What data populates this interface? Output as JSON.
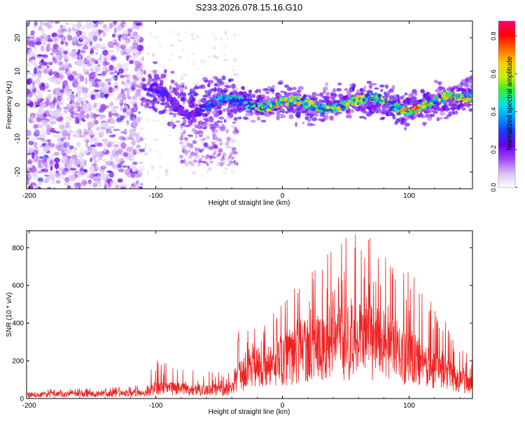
{
  "title": "S233.2026.078.15.16.G10",
  "colors": {
    "snr_line": "#ee2222",
    "colormap": [
      "#ffffff",
      "#d9c2f5",
      "#a24df0",
      "#6a00ee",
      "#2233ff",
      "#0099ff",
      "#00e5e5",
      "#33ee33",
      "#ccee00",
      "#ffcc00",
      "#ff6600",
      "#ff0000",
      "#ff0077"
    ]
  },
  "chart_data": [
    {
      "type": "heatmap",
      "name": "spectrogram",
      "xlabel": "Height of straight line (km)",
      "ylabel": "Frequency (Hz)",
      "xlim": [
        -202,
        150
      ],
      "ylim": [
        -25,
        25
      ],
      "x_ticks": [
        -200,
        -100,
        0,
        100
      ],
      "x_tick_labels": [
        "-200",
        "-100",
        "0",
        "100"
      ],
      "y_ticks": [
        20,
        10,
        0,
        -10,
        -20
      ],
      "y_tick_labels": [
        "20",
        "10",
        "0",
        "-10",
        "-20"
      ],
      "colorbar": {
        "label": "Normalized spectral amplitude",
        "range": [
          0,
          0.88
        ],
        "ticks": [
          0.0,
          0.2,
          0.4,
          0.6,
          0.8
        ],
        "tick_labels": [
          "0.0",
          "0.2",
          "0.4",
          "0.6",
          "0.8"
        ]
      },
      "description_ridge": [
        {
          "x": -100,
          "freq": 4,
          "amp": 0.3
        },
        {
          "x": -75,
          "freq": -2,
          "amp": 0.25
        },
        {
          "x": -50,
          "freq": 1,
          "amp": 0.45
        },
        {
          "x": -25,
          "freq": 0,
          "amp": 0.55
        },
        {
          "x": 0,
          "freq": 1,
          "amp": 0.7
        },
        {
          "x": 25,
          "freq": -1,
          "amp": 0.6
        },
        {
          "x": 50,
          "freq": 1,
          "amp": 0.65
        },
        {
          "x": 75,
          "freq": 1,
          "amp": 0.6
        },
        {
          "x": 100,
          "freq": -1,
          "amp": 0.75
        },
        {
          "x": 125,
          "freq": 1,
          "amp": 0.7
        },
        {
          "x": 150,
          "freq": 3,
          "amp": 0.7
        }
      ]
    },
    {
      "type": "line",
      "name": "snr",
      "xlabel": "Height of straight line (km)",
      "ylabel": "SNR (10 * v/v)",
      "xlim": [
        -202,
        150
      ],
      "ylim": [
        0,
        890
      ],
      "x_ticks": [
        -200,
        -100,
        0,
        100
      ],
      "x_tick_labels": [
        "-200",
        "-100",
        "0",
        "100"
      ],
      "y_ticks": [
        0,
        200,
        400,
        600,
        800
      ],
      "y_tick_labels": [
        "0",
        "200",
        "400",
        "600",
        "800"
      ],
      "envelope_points": [
        {
          "x": -202,
          "mean": 25,
          "peak": 45
        },
        {
          "x": -150,
          "mean": 30,
          "peak": 55
        },
        {
          "x": -110,
          "mean": 35,
          "peak": 70
        },
        {
          "x": -100,
          "mean": 70,
          "peak": 210
        },
        {
          "x": -80,
          "mean": 60,
          "peak": 150
        },
        {
          "x": -60,
          "mean": 55,
          "peak": 150
        },
        {
          "x": -40,
          "mean": 60,
          "peak": 130
        },
        {
          "x": -35,
          "mean": 150,
          "peak": 360
        },
        {
          "x": -20,
          "mean": 200,
          "peak": 420
        },
        {
          "x": 0,
          "mean": 250,
          "peak": 500
        },
        {
          "x": 20,
          "mean": 320,
          "peak": 700
        },
        {
          "x": 40,
          "mean": 380,
          "peak": 850
        },
        {
          "x": 60,
          "mean": 380,
          "peak": 890
        },
        {
          "x": 80,
          "mean": 360,
          "peak": 820
        },
        {
          "x": 100,
          "mean": 280,
          "peak": 700
        },
        {
          "x": 120,
          "mean": 200,
          "peak": 500
        },
        {
          "x": 140,
          "mean": 120,
          "peak": 300
        },
        {
          "x": 150,
          "mean": 90,
          "peak": 210
        }
      ]
    }
  ]
}
